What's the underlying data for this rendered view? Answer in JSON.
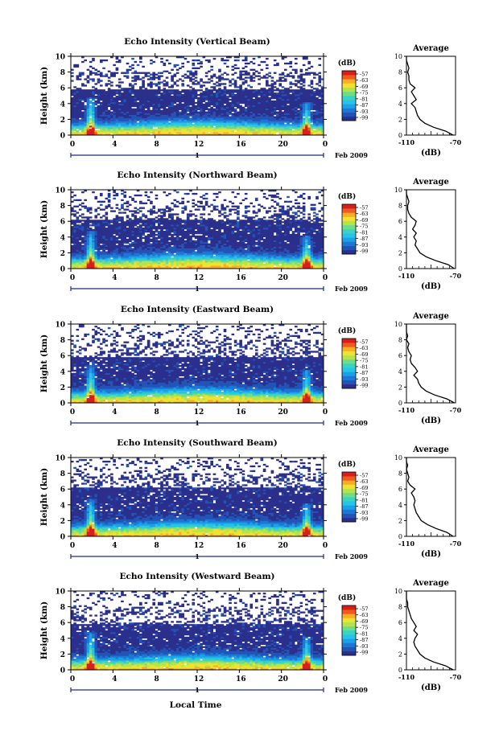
{
  "page": {
    "bottom_xlabel": "Local Time"
  },
  "colorbar": {
    "unit_label": "(dB)",
    "ticks": [
      "-57",
      "-63",
      "-69",
      "-75",
      "-81",
      "-87",
      "-93",
      "-99"
    ],
    "colors": [
      "#2b2f8c",
      "#2453b6",
      "#1f77d4",
      "#1ca0e6",
      "#27c3e8",
      "#3ad2c0",
      "#6fdc8a",
      "#b4e34e",
      "#f0e230",
      "#f9ad27",
      "#ef5a1e",
      "#d61f1a"
    ]
  },
  "date_label": "Feb 2009",
  "date_tick": "1",
  "avg": {
    "title": "Average",
    "xlabel": "(dB)",
    "xtick_left": "-110",
    "xtick_right": "-70"
  },
  "chart_data": [
    {
      "type": "heatmap",
      "title": "Echo Intensity (Vertical Beam)",
      "ylabel": "Height (km)",
      "x_ticks": [
        "0",
        "4",
        "8",
        "12",
        "16",
        "20",
        "0"
      ],
      "y_ticks": [
        "0",
        "2",
        "4",
        "6",
        "8",
        "10"
      ],
      "xlim": [
        0,
        24
      ],
      "ylim": [
        0,
        10
      ],
      "clim": [
        -99,
        -57
      ],
      "avg_profile": {
        "xlim": [
          -110,
          -70
        ],
        "height": [
          0,
          0.5,
          1,
          1.5,
          2,
          2.5,
          3,
          3.5,
          4,
          4.5,
          5,
          5.5,
          6,
          6.5,
          7,
          7.5,
          8,
          8.5,
          9,
          9.5,
          10
        ],
        "db": [
          -72,
          -78,
          -88,
          -95,
          -99,
          -101,
          -102,
          -103,
          -106,
          -102,
          -104,
          -106,
          -103,
          -107,
          -108,
          -108,
          -109,
          -108,
          -109,
          -110,
          -110
        ]
      }
    },
    {
      "type": "heatmap",
      "title": "Echo Intensity (Northward Beam)",
      "ylabel": "Height (km)",
      "x_ticks": [
        "0",
        "4",
        "8",
        "12",
        "16",
        "20",
        "0"
      ],
      "y_ticks": [
        "0",
        "2",
        "4",
        "6",
        "8",
        "10"
      ],
      "xlim": [
        0,
        24
      ],
      "ylim": [
        0,
        10
      ],
      "clim": [
        -99,
        -57
      ],
      "avg_profile": {
        "xlim": [
          -110,
          -70
        ],
        "height": [
          0,
          0.5,
          1,
          1.5,
          2,
          2.5,
          3,
          3.5,
          4,
          4.5,
          5,
          5.5,
          6,
          6.5,
          7,
          7.5,
          8,
          8.5,
          9,
          9.5,
          10
        ],
        "db": [
          -71,
          -76,
          -86,
          -94,
          -99,
          -101,
          -103,
          -102,
          -104,
          -102,
          -105,
          -103,
          -102,
          -106,
          -108,
          -109,
          -109,
          -108,
          -109,
          -110,
          -110
        ]
      }
    },
    {
      "type": "heatmap",
      "title": "Echo Intensity (Eastward Beam)",
      "ylabel": "Height (km)",
      "x_ticks": [
        "0",
        "4",
        "8",
        "12",
        "16",
        "20",
        "0"
      ],
      "y_ticks": [
        "0",
        "2",
        "4",
        "6",
        "8",
        "10"
      ],
      "xlim": [
        0,
        24
      ],
      "ylim": [
        0,
        10
      ],
      "clim": [
        -99,
        -57
      ],
      "avg_profile": {
        "xlim": [
          -110,
          -70
        ],
        "height": [
          0,
          0.5,
          1,
          1.5,
          2,
          2.5,
          3,
          3.5,
          4,
          4.5,
          5,
          5.5,
          6,
          6.5,
          7,
          7.5,
          8,
          8.5,
          9,
          9.5,
          10
        ],
        "db": [
          -71,
          -77,
          -87,
          -94,
          -98,
          -100,
          -101,
          -104,
          -101,
          -103,
          -106,
          -107,
          -106,
          -108,
          -109,
          -108,
          -110,
          -109,
          -110,
          -110,
          -110
        ]
      }
    },
    {
      "type": "heatmap",
      "title": "Echo Intensity (Southward Beam)",
      "ylabel": "Height (km)",
      "x_ticks": [
        "0",
        "4",
        "8",
        "12",
        "16",
        "20",
        "0"
      ],
      "y_ticks": [
        "0",
        "2",
        "4",
        "6",
        "8",
        "10"
      ],
      "xlim": [
        0,
        24
      ],
      "ylim": [
        0,
        10
      ],
      "clim": [
        -99,
        -57
      ],
      "avg_profile": {
        "xlim": [
          -110,
          -70
        ],
        "height": [
          0,
          0.5,
          1,
          1.5,
          2,
          2.5,
          3,
          3.5,
          4,
          4.5,
          5,
          5.5,
          6,
          6.5,
          7,
          7.5,
          8,
          8.5,
          9,
          9.5,
          10
        ],
        "db": [
          -72,
          -77,
          -86,
          -93,
          -98,
          -100,
          -102,
          -103,
          -104,
          -103,
          -104,
          -106,
          -103,
          -107,
          -109,
          -108,
          -109,
          -110,
          -109,
          -110,
          -110
        ]
      }
    },
    {
      "type": "heatmap",
      "title": "Echo Intensity (Westward Beam)",
      "ylabel": "Height (km)",
      "x_ticks": [
        "0",
        "4",
        "8",
        "12",
        "16",
        "20",
        "0"
      ],
      "y_ticks": [
        "0",
        "2",
        "4",
        "6",
        "8",
        "10"
      ],
      "xlim": [
        0,
        24
      ],
      "ylim": [
        0,
        10
      ],
      "clim": [
        -99,
        -57
      ],
      "avg_profile": {
        "xlim": [
          -110,
          -70
        ],
        "height": [
          0,
          0.5,
          1,
          1.5,
          2,
          2.5,
          3,
          3.5,
          4,
          4.5,
          5,
          5.5,
          6,
          6.5,
          7,
          7.5,
          8,
          8.5,
          9,
          9.5,
          10
        ],
        "db": [
          -72,
          -78,
          -88,
          -95,
          -99,
          -101,
          -103,
          -104,
          -103,
          -101,
          -104,
          -102,
          -104,
          -106,
          -107,
          -108,
          -109,
          -109,
          -110,
          -110,
          -110
        ]
      }
    }
  ]
}
